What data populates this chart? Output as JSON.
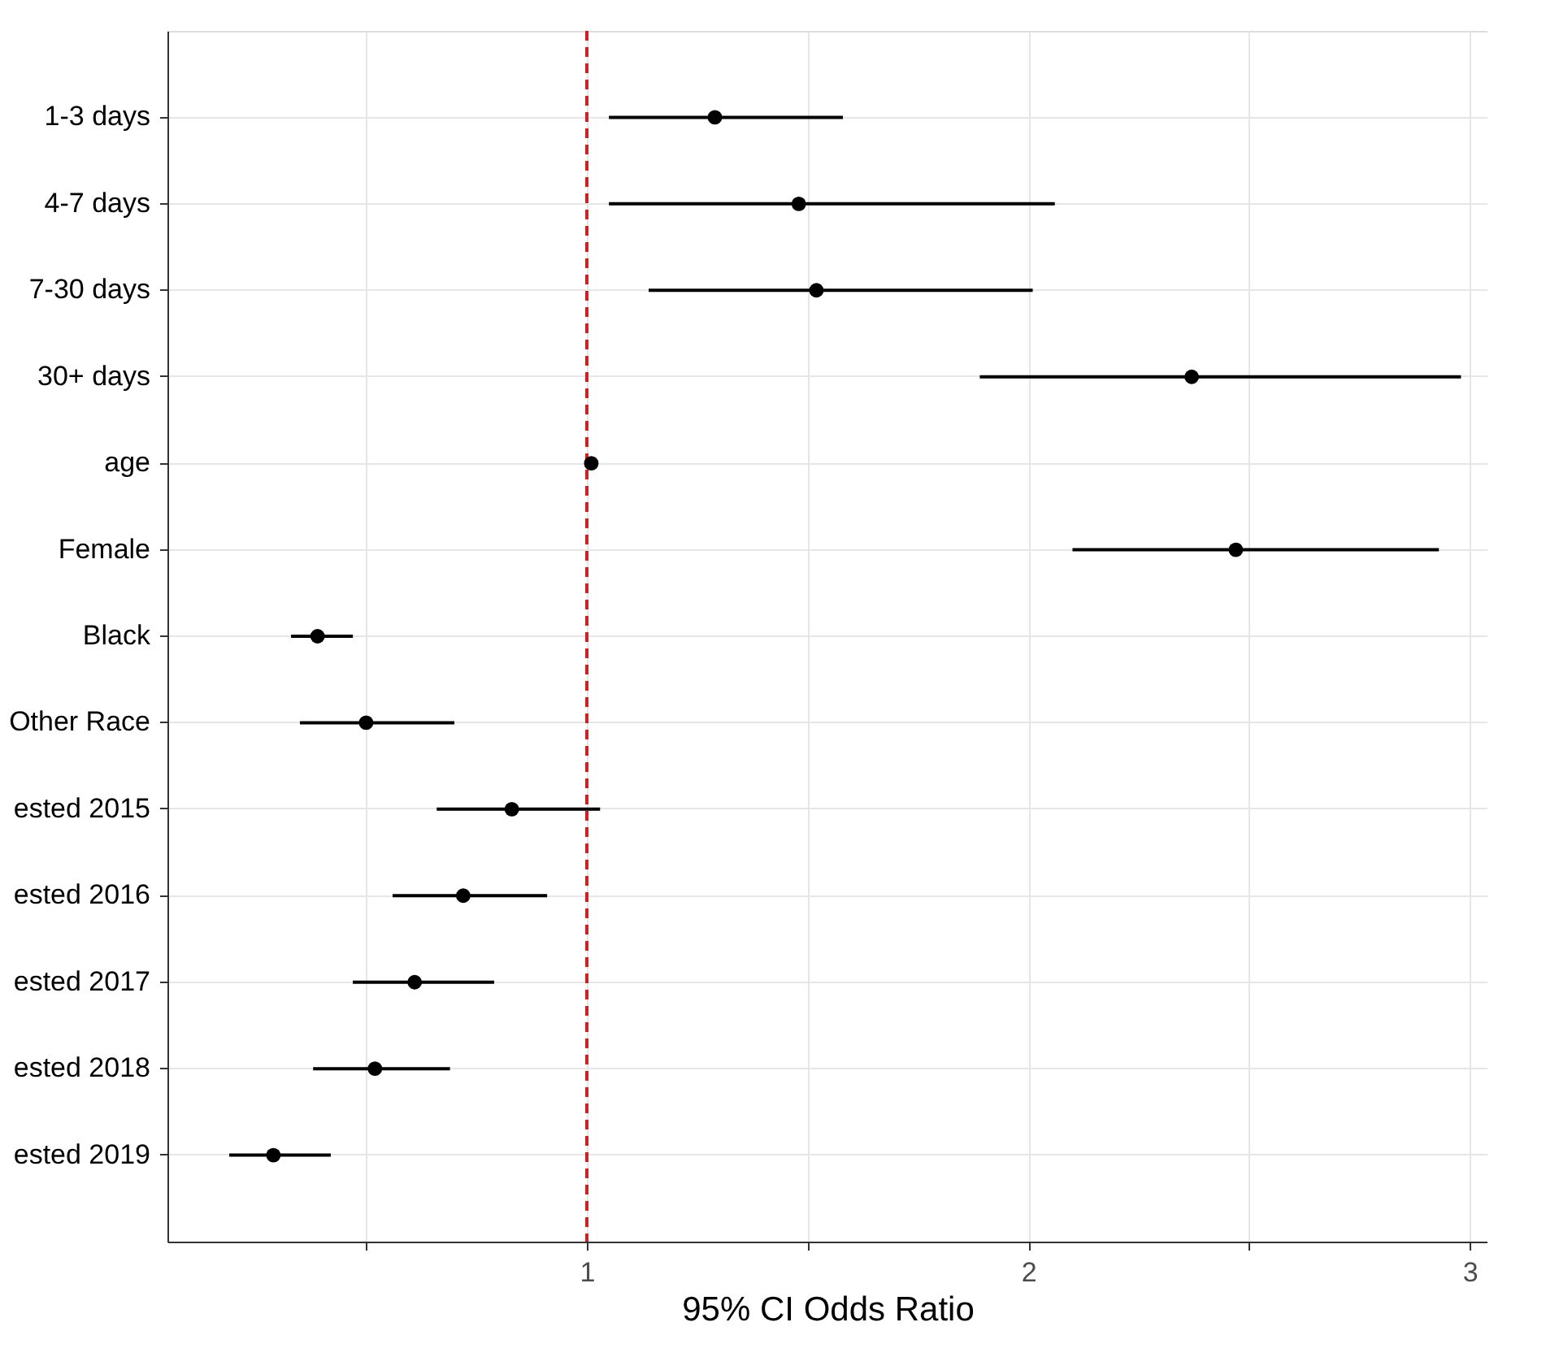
{
  "chart_data": {
    "type": "scatter",
    "orientation": "horizontal",
    "marker": "circle",
    "grid": true,
    "xlabel": "95% CI Odds Ratio",
    "categories": [
      "1-3 days",
      "4-7 days",
      "7-30 days",
      "30+ days",
      "age",
      "Female",
      "Black",
      "Other Race",
      "ested 2015",
      "ested 2016",
      "ested 2017",
      "ested 2018",
      "ested 2019"
    ],
    "series": [
      {
        "color": "#000000",
        "values": [
          1.29,
          1.48,
          1.52,
          2.37,
          1.01,
          2.47,
          0.39,
          0.5,
          0.83,
          0.72,
          0.61,
          0.52,
          0.29
        ],
        "errors": [
          [
            1.05,
            1.58
          ],
          [
            1.05,
            2.06
          ],
          [
            1.14,
            2.01
          ],
          [
            1.89,
            2.98
          ],
          null,
          [
            2.1,
            2.93
          ],
          [
            0.33,
            0.47
          ],
          [
            0.35,
            0.7
          ],
          [
            0.66,
            1.03
          ],
          [
            0.56,
            0.91
          ],
          [
            0.47,
            0.79
          ],
          [
            0.38,
            0.69
          ],
          [
            0.19,
            0.42
          ]
        ]
      }
    ],
    "xlim": [
      0.05,
      3.04
    ],
    "xticks": [
      {
        "value": 0.5,
        "label": null
      },
      1,
      {
        "value": 1.5,
        "label": null
      },
      2,
      {
        "value": 2.5,
        "label": null
      },
      3
    ],
    "ref_lines": [
      {
        "axis": "x",
        "value": 1,
        "color": "#cc2222",
        "line_style": "dashed"
      }
    ]
  }
}
